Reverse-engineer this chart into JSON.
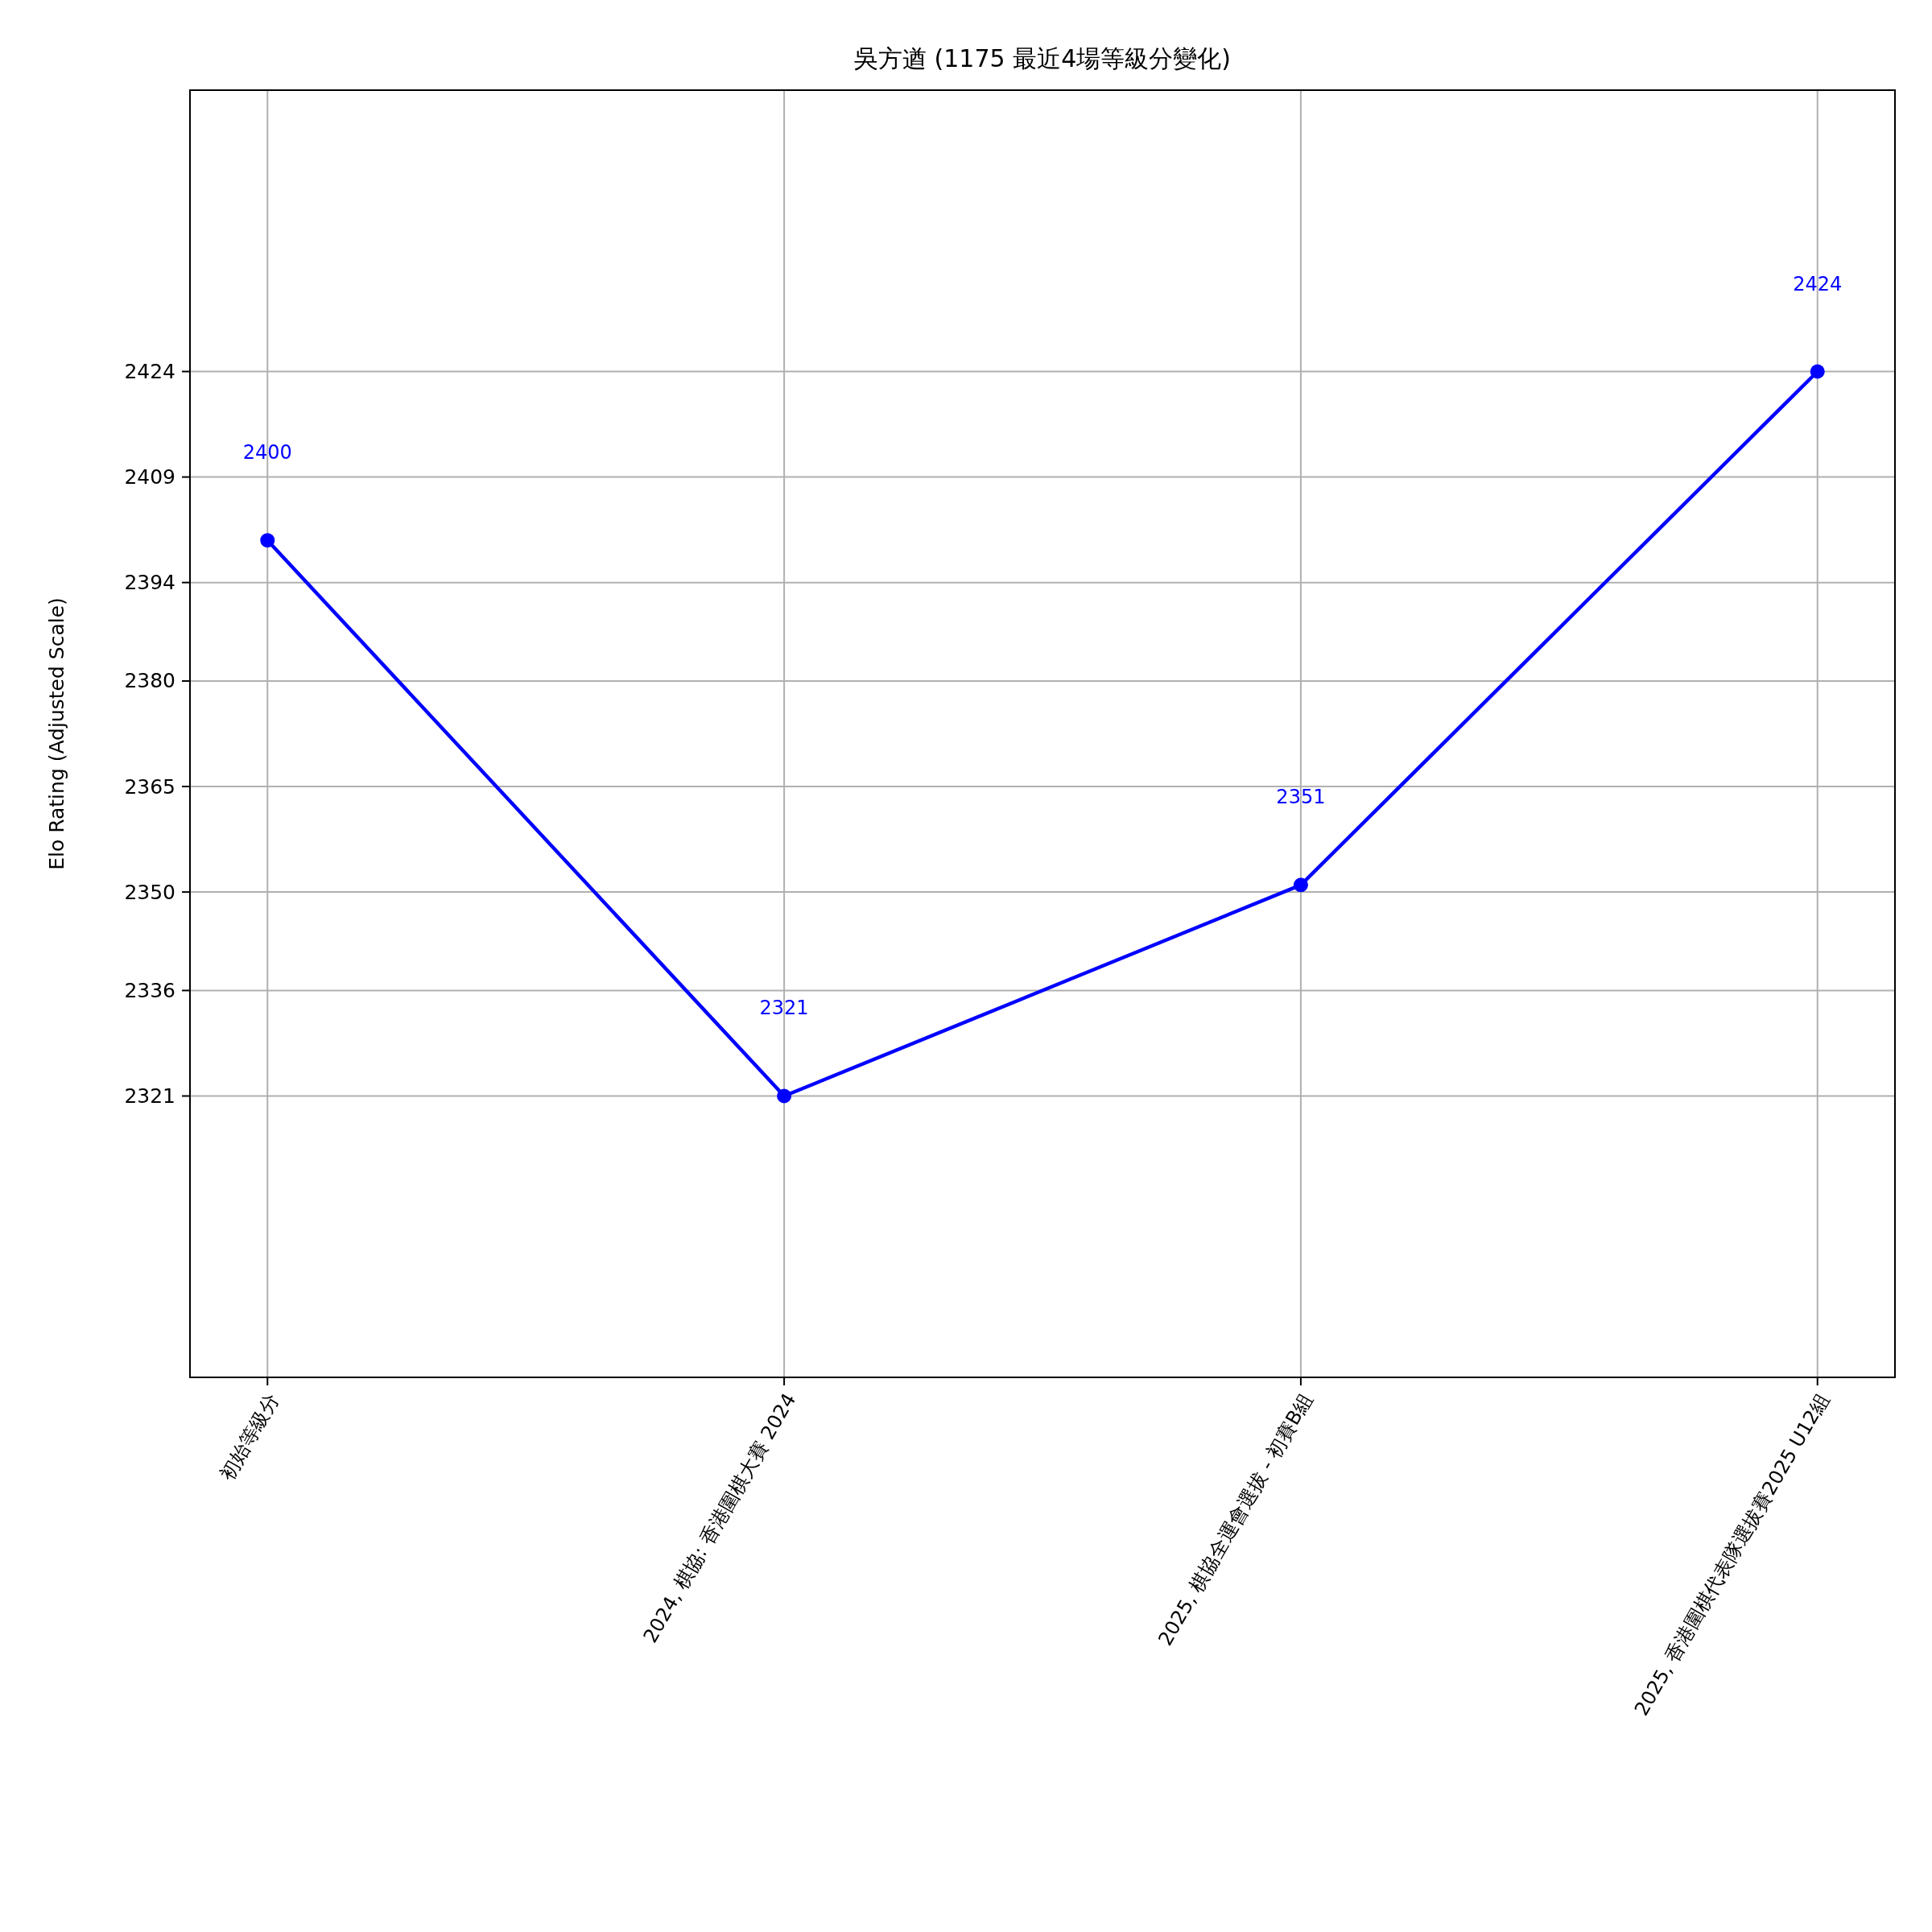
{
  "chart_data": {
    "type": "line",
    "title": "吳方遒 (1175 最近4場等級分變化)",
    "ylabel": "Elo Rating (Adjusted Scale)",
    "categories": [
      "初始等級分",
      "2024, 棋協: 香港圍棋大賽 2024",
      "2025, 棋協全運會選拔 - 初賽B組",
      "2025, 香港圍棋代表隊選拔賽2025 U12組"
    ],
    "series": [
      {
        "color": "#0000ff",
        "values": [
          2400,
          2321,
          2351,
          2424
        ]
      }
    ],
    "ylim": [
      2281,
      2464
    ],
    "yticks": [
      2321,
      2336,
      2350,
      2365,
      2380,
      2394,
      2409,
      2424
    ],
    "annotations": [
      "2400",
      "2321",
      "2351",
      "2424"
    ],
    "grid": true,
    "marker": "circle",
    "line_style": "solid"
  }
}
